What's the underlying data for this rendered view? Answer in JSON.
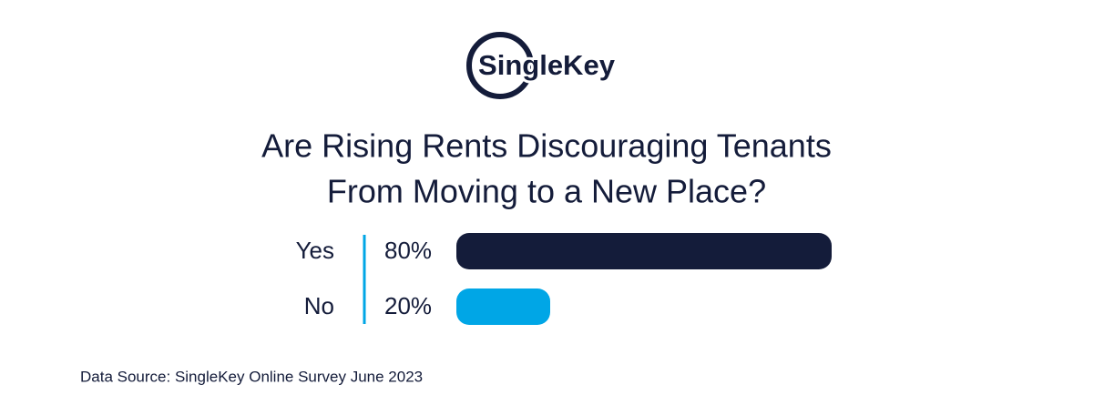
{
  "logo": "SingleKey",
  "chart_data": {
    "type": "bar",
    "orientation": "horizontal",
    "title": [
      "Are Rising Rents Discouraging Tenants",
      "From Moving to a New Place?"
    ],
    "categories": [
      "Yes",
      "No"
    ],
    "values": [
      80,
      20
    ],
    "value_labels": [
      "80%",
      "20%"
    ],
    "colors": [
      "#141c3a",
      "#00a6e6"
    ]
  },
  "source": "Data Source: SingleKey Online Survey June 2023"
}
